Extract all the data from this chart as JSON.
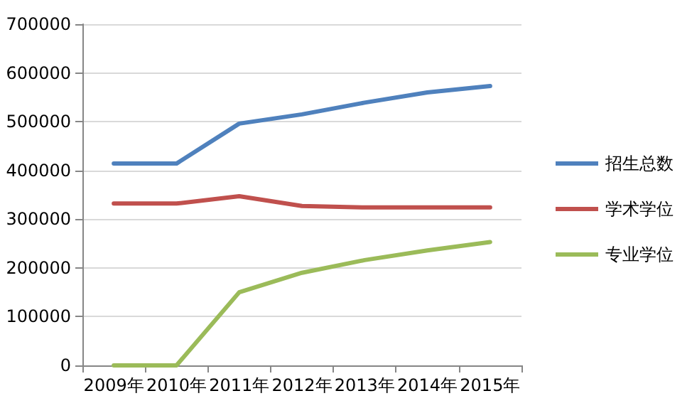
{
  "chart_data": {
    "type": "line",
    "categories": [
      "2009年",
      "2010年",
      "2011年",
      "2012年",
      "2013年",
      "2014年",
      "2015年"
    ],
    "series": [
      {
        "name": "招生总数",
        "color": "#4f81bd",
        "values": [
          414000,
          414000,
          496000,
          515000,
          539000,
          560000,
          573000
        ]
      },
      {
        "name": "学术学位",
        "color": "#c0504d",
        "values": [
          332000,
          332000,
          347000,
          327000,
          324000,
          324000,
          324000
        ]
      },
      {
        "name": "专业学位",
        "color": "#9bbb59",
        "values": [
          0,
          0,
          150000,
          190000,
          216000,
          236000,
          253000
        ]
      }
    ],
    "ylim": [
      0,
      700000
    ],
    "yticks": [
      0,
      100000,
      200000,
      300000,
      400000,
      500000,
      600000,
      700000
    ],
    "grid": "y",
    "legend": "right",
    "marker": "none",
    "line_style": "solid"
  }
}
